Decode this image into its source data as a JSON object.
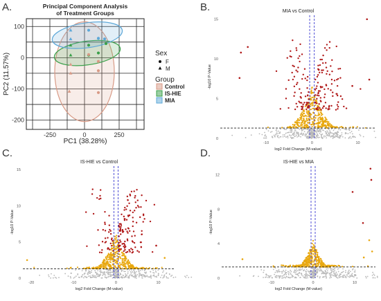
{
  "panel_letters": [
    "A.",
    "B.",
    "C.",
    "D."
  ],
  "colors": {
    "control": "#d89a86",
    "is_hie": "#3aa04a",
    "mia": "#5ea8d8",
    "points_sig": "#b01818",
    "points_mid": "#e8a810",
    "points_ns": "#b8b8b8",
    "thresh": "#3b3bd0",
    "pca_grid": "#222222"
  },
  "chart_data": [
    {
      "type": "scatter",
      "panel": "A.",
      "title": "Principal Component Analysis\nof Treatment Groups",
      "xlabel": "PC1 (38.28%)",
      "ylabel": "PC2 (11.57%)",
      "xlim": [
        -420,
        430
      ],
      "ylim": [
        -230,
        125
      ],
      "xticks": [
        -250,
        0,
        250
      ],
      "yticks": [
        100,
        0,
        -100,
        -200
      ],
      "grid": true,
      "legend": {
        "placement": "right",
        "sex_title": "Sex",
        "sex_items": [
          {
            "label": "F",
            "shape": "circle"
          },
          {
            "label": "M",
            "shape": "triangle"
          }
        ],
        "group_title": "Group",
        "group_items": [
          {
            "label": "Control",
            "color": "#d89a86"
          },
          {
            "label": "IS-HIE",
            "color": "#3aa04a"
          },
          {
            "label": "MIA",
            "color": "#5ea8d8"
          }
        ]
      },
      "ellipses": [
        {
          "group": "Control",
          "cx": 0,
          "cy": -45,
          "rx": 215,
          "ry": 160
        },
        {
          "group": "IS-HIE",
          "cx": 20,
          "cy": 15,
          "rx": 240,
          "ry": 38,
          "angle": -8
        },
        {
          "group": "MIA",
          "cx": 20,
          "cy": 72,
          "rx": 255,
          "ry": 40,
          "angle": -8
        }
      ],
      "points": [
        {
          "group": "MIA",
          "sex": "M",
          "x": -100,
          "y": 88
        },
        {
          "group": "MIA",
          "sex": "F",
          "x": 30,
          "y": 88
        },
        {
          "group": "MIA",
          "sex": "M",
          "x": -100,
          "y": 60
        },
        {
          "group": "MIA",
          "sex": "F",
          "x": 100,
          "y": 62
        },
        {
          "group": "MIA",
          "sex": "F",
          "x": 145,
          "y": 60
        },
        {
          "group": "IS-HIE",
          "sex": "F",
          "x": 155,
          "y": 45
        },
        {
          "group": "IS-HIE",
          "sex": "M",
          "x": -100,
          "y": 40
        },
        {
          "group": "IS-HIE",
          "sex": "F",
          "x": 30,
          "y": 40
        },
        {
          "group": "IS-HIE",
          "sex": "M",
          "x": -100,
          "y": 8
        },
        {
          "group": "IS-HIE",
          "sex": "F",
          "x": 30,
          "y": 8
        },
        {
          "group": "IS-HIE",
          "sex": "F",
          "x": 100,
          "y": 15
        },
        {
          "group": "Control",
          "sex": "M",
          "x": -100,
          "y": -22
        },
        {
          "group": "Control",
          "sex": "F",
          "x": 30,
          "y": 10
        },
        {
          "group": "Control",
          "sex": "F",
          "x": 100,
          "y": -12
        },
        {
          "group": "Control",
          "sex": "M",
          "x": -100,
          "y": -50
        },
        {
          "group": "Control",
          "sex": "F",
          "x": 100,
          "y": -42
        },
        {
          "group": "Control",
          "sex": "M",
          "x": -110,
          "y": -108
        },
        {
          "group": "Control",
          "sex": "F",
          "x": 100,
          "y": -112
        }
      ]
    },
    {
      "type": "scatter",
      "panel": "B.",
      "title": "MIA vs Control",
      "xlabel": "log2 Fold Change (M-value)",
      "ylabel": "-log10 P-Value",
      "xlim": [
        -20,
        14
      ],
      "ylim": [
        0,
        15.5
      ],
      "xticks": [
        -10,
        0,
        10
      ],
      "yticks": [
        0,
        5,
        10,
        15
      ],
      "fc_thresholds": [
        -0.5,
        0.5
      ],
      "p_threshold": 1.3,
      "outliers": [
        {
          "x": -14,
          "y": 11.5
        },
        {
          "x": -15.5,
          "y": 10.8
        },
        {
          "x": 12,
          "y": 15
        },
        {
          "x": -15.8,
          "y": 7.6
        },
        {
          "x": 8.8,
          "y": 6.6
        },
        {
          "x": 12.5,
          "y": 7.4
        }
      ]
    },
    {
      "type": "scatter",
      "panel": "C.",
      "title": "IS-HIE vs Control",
      "xlabel": "log2 Fold Change (M-value)",
      "ylabel": "-log10 P-Value",
      "xlim": [
        -22,
        14
      ],
      "ylim": [
        0,
        15.5
      ],
      "xticks": [
        -20,
        -10,
        0,
        10
      ],
      "yticks": [
        0,
        5,
        10,
        15
      ],
      "fc_thresholds": [
        -0.5,
        0.5
      ],
      "p_threshold": 1.3,
      "outliers": [
        {
          "x": -21,
          "y": 2.5
        },
        {
          "x": 9.5,
          "y": 4.5
        },
        {
          "x": 11.5,
          "y": 2.8
        }
      ]
    },
    {
      "type": "scatter",
      "panel": "D.",
      "title": "IS-HIE vs MIA",
      "xlabel": "log2 Fold Change (M-value)",
      "ylabel": "-log10 P-Value",
      "xlim": [
        -22,
        15
      ],
      "ylim": [
        0,
        13
      ],
      "xticks": [
        -10,
        0,
        10
      ],
      "yticks": [
        0,
        4,
        8,
        12
      ],
      "fc_thresholds": [
        -0.5,
        0.5
      ],
      "p_threshold": 1.3,
      "outliers": [
        {
          "x": 13.8,
          "y": 12.7
        },
        {
          "x": 14,
          "y": 11.4
        },
        {
          "x": 9.5,
          "y": 10
        },
        {
          "x": 12,
          "y": 6.4
        },
        {
          "x": 13.5,
          "y": 4.4
        },
        {
          "x": 14.2,
          "y": 3.1
        },
        {
          "x": 12.2,
          "y": 2.4
        },
        {
          "x": -17,
          "y": 2.2
        }
      ]
    }
  ]
}
